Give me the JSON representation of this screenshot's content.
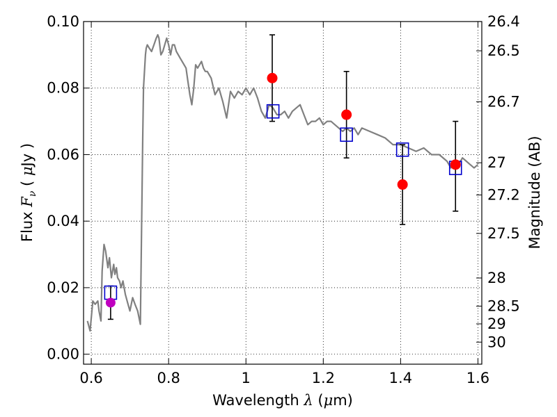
{
  "chart_data": {
    "type": "scatter",
    "xlabel": {
      "prefix": "Wavelength  ",
      "lambda": "λ",
      "unit_open": " (",
      "mu": "μ",
      "unit_close": "m)"
    },
    "ylabel": {
      "prefix": "Flux  ",
      "F": "F",
      "nu": "ν",
      "open": "  (  ",
      "mu": "μ",
      "close": "Jy )"
    },
    "y2label": "Magnitude (AB)",
    "xlim": [
      0.58,
      1.61
    ],
    "ylim": [
      -0.003,
      0.1
    ],
    "grid": true,
    "x_ticks": [
      {
        "value": 0.6,
        "label": "0.6"
      },
      {
        "value": 0.8,
        "label": "0.8"
      },
      {
        "value": 1.0,
        "label": "1"
      },
      {
        "value": 1.2,
        "label": "1.2"
      },
      {
        "value": 1.4,
        "label": "1.4"
      },
      {
        "value": 1.6,
        "label": "1.6"
      }
    ],
    "y_ticks": [
      {
        "value": 0.0,
        "label": "0.00"
      },
      {
        "value": 0.02,
        "label": "0.02"
      },
      {
        "value": 0.04,
        "label": "0.04"
      },
      {
        "value": 0.06,
        "label": "0.06"
      },
      {
        "value": 0.08,
        "label": "0.08"
      },
      {
        "value": 0.1,
        "label": "0.10"
      }
    ],
    "mag_ticks": [
      {
        "value": 26.4,
        "label": "26.4"
      },
      {
        "value": 26.5,
        "label": "26.5"
      },
      {
        "value": 26.7,
        "label": "26.7"
      },
      {
        "value": 27.0,
        "label": "27"
      },
      {
        "value": 27.2,
        "label": "27.2"
      },
      {
        "value": 27.5,
        "label": "27.5"
      },
      {
        "value": 28.0,
        "label": "28"
      },
      {
        "value": 28.5,
        "label": "28.5"
      },
      {
        "value": 29.0,
        "label": "29"
      },
      {
        "value": 30.0,
        "label": "30"
      }
    ],
    "model_spectrum": {
      "color": "#808080",
      "x": [
        0.59,
        0.597,
        0.604,
        0.61,
        0.617,
        0.62,
        0.625,
        0.628,
        0.633,
        0.637,
        0.643,
        0.647,
        0.652,
        0.658,
        0.661,
        0.665,
        0.668,
        0.673,
        0.677,
        0.682,
        0.688,
        0.695,
        0.7,
        0.707,
        0.713,
        0.72,
        0.727,
        0.733,
        0.735,
        0.74,
        0.742,
        0.745,
        0.75,
        0.756,
        0.762,
        0.768,
        0.772,
        0.775,
        0.78,
        0.785,
        0.79,
        0.795,
        0.8,
        0.805,
        0.81,
        0.815,
        0.82,
        0.825,
        0.83,
        0.835,
        0.84,
        0.845,
        0.85,
        0.855,
        0.86,
        0.865,
        0.87,
        0.875,
        0.88,
        0.885,
        0.89,
        0.895,
        0.9,
        0.91,
        0.92,
        0.93,
        0.94,
        0.95,
        0.96,
        0.97,
        0.98,
        0.99,
        1.0,
        1.01,
        1.02,
        1.03,
        1.04,
        1.05,
        1.06,
        1.07,
        1.08,
        1.09,
        1.1,
        1.11,
        1.12,
        1.13,
        1.14,
        1.15,
        1.16,
        1.17,
        1.18,
        1.19,
        1.2,
        1.21,
        1.22,
        1.23,
        1.24,
        1.25,
        1.26,
        1.27,
        1.28,
        1.29,
        1.3,
        1.32,
        1.34,
        1.36,
        1.38,
        1.4,
        1.42,
        1.44,
        1.46,
        1.48,
        1.5,
        1.52,
        1.53,
        1.54,
        1.55,
        1.56,
        1.57,
        1.58,
        1.59,
        1.6
      ],
      "y": [
        0.01,
        0.007,
        0.016,
        0.015,
        0.016,
        0.013,
        0.01,
        0.025,
        0.033,
        0.031,
        0.026,
        0.029,
        0.023,
        0.027,
        0.024,
        0.026,
        0.023,
        0.022,
        0.02,
        0.022,
        0.018,
        0.015,
        0.013,
        0.017,
        0.015,
        0.013,
        0.009,
        0.065,
        0.08,
        0.09,
        0.092,
        0.093,
        0.092,
        0.091,
        0.093,
        0.095,
        0.096,
        0.095,
        0.09,
        0.091,
        0.093,
        0.095,
        0.093,
        0.09,
        0.093,
        0.093,
        0.091,
        0.09,
        0.089,
        0.088,
        0.087,
        0.086,
        0.082,
        0.078,
        0.075,
        0.08,
        0.087,
        0.086,
        0.087,
        0.088,
        0.086,
        0.085,
        0.085,
        0.083,
        0.078,
        0.08,
        0.076,
        0.071,
        0.079,
        0.077,
        0.079,
        0.078,
        0.08,
        0.078,
        0.08,
        0.077,
        0.073,
        0.071,
        0.075,
        0.074,
        0.072,
        0.072,
        0.073,
        0.071,
        0.073,
        0.074,
        0.075,
        0.072,
        0.069,
        0.07,
        0.07,
        0.071,
        0.069,
        0.07,
        0.07,
        0.069,
        0.068,
        0.067,
        0.068,
        0.067,
        0.068,
        0.066,
        0.068,
        0.067,
        0.066,
        0.065,
        0.063,
        0.063,
        0.062,
        0.061,
        0.062,
        0.06,
        0.06,
        0.058,
        0.056,
        0.058,
        0.057,
        0.059,
        0.058,
        0.057,
        0.056,
        0.057
      ]
    },
    "observed": {
      "color": "#ff0000",
      "points": [
        {
          "x": 1.068,
          "y": 0.083,
          "err_low": 0.07,
          "err_high": 0.096
        },
        {
          "x": 1.26,
          "y": 0.072,
          "err_low": 0.059,
          "err_high": 0.085
        },
        {
          "x": 1.405,
          "y": 0.051,
          "err_low": 0.039,
          "err_high": 0.063
        },
        {
          "x": 1.542,
          "y": 0.057,
          "err_low": 0.043,
          "err_high": 0.07
        }
      ]
    },
    "observed_optical": {
      "color": "#bf00bf",
      "points": [
        {
          "x": 0.65,
          "y": 0.0155,
          "err_low": 0.0105,
          "err_high": 0.0205
        }
      ]
    },
    "model_synthetic": {
      "color": "#0000cc",
      "points": [
        {
          "x": 0.65,
          "y": 0.0185
        },
        {
          "x": 1.07,
          "y": 0.073
        },
        {
          "x": 1.26,
          "y": 0.066
        },
        {
          "x": 1.405,
          "y": 0.0615
        },
        {
          "x": 1.542,
          "y": 0.056
        }
      ]
    }
  }
}
